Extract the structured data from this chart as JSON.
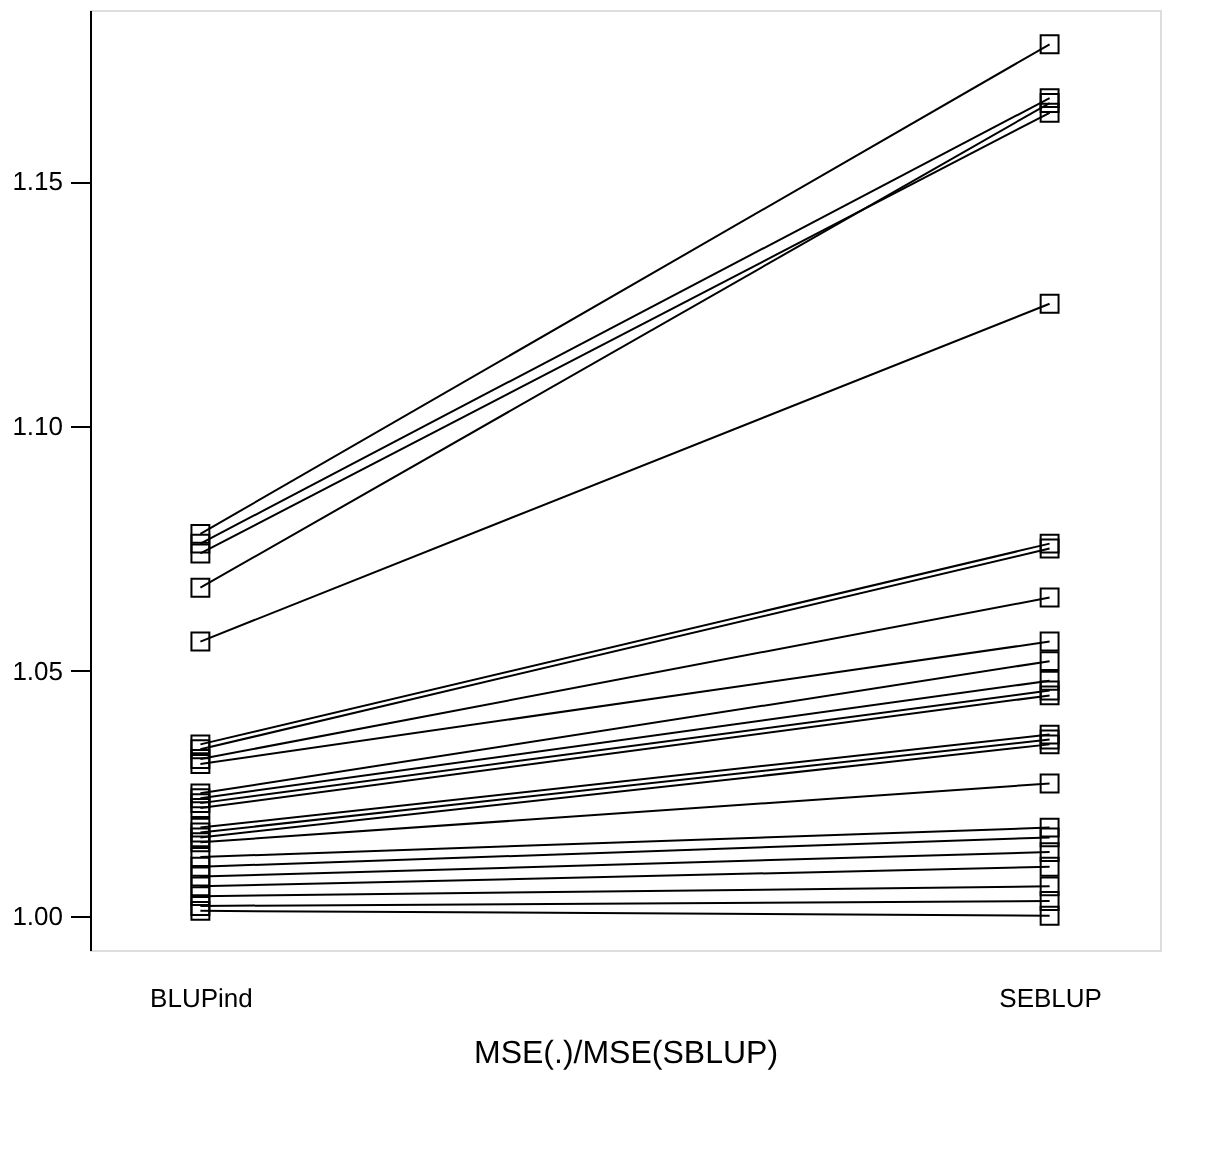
{
  "chart_data": {
    "type": "line",
    "xlabel": "MSE(.)/MSE(SBLUP)",
    "categories": [
      "BLUPind",
      "SEBLUP"
    ],
    "ylim": [
      0.993,
      1.185
    ],
    "yticks": [
      {
        "value": 1.0,
        "label": "1.00"
      },
      {
        "value": 1.05,
        "label": "1.05"
      },
      {
        "value": 1.1,
        "label": "1.10"
      },
      1.15
    ],
    "grid": false,
    "legend": false,
    "marker": "square",
    "line_style": "solid",
    "series": [
      {
        "color": "#000000",
        "values": [
          1.078,
          1.178
        ]
      },
      {
        "color": "#000000",
        "values": [
          1.076,
          1.167
        ]
      },
      {
        "color": "#000000",
        "values": [
          1.074,
          1.164
        ]
      },
      {
        "color": "#000000",
        "values": [
          1.067,
          1.166
        ]
      },
      {
        "color": "#000000",
        "values": [
          1.056,
          1.125
        ]
      },
      {
        "color": "#000000",
        "values": [
          1.035,
          1.076
        ]
      },
      {
        "color": "#000000",
        "values": [
          1.034,
          1.075
        ]
      },
      {
        "color": "#000000",
        "values": [
          1.032,
          1.065
        ]
      },
      {
        "color": "#000000",
        "values": [
          1.031,
          1.056
        ]
      },
      {
        "color": "#000000",
        "values": [
          1.025,
          1.052
        ]
      },
      {
        "color": "#000000",
        "values": [
          1.024,
          1.048
        ]
      },
      {
        "color": "#000000",
        "values": [
          1.023,
          1.046
        ]
      },
      {
        "color": "#000000",
        "values": [
          1.022,
          1.045
        ]
      },
      {
        "color": "#000000",
        "values": [
          1.018,
          1.037
        ]
      },
      {
        "color": "#000000",
        "values": [
          1.017,
          1.036
        ]
      },
      {
        "color": "#000000",
        "values": [
          1.016,
          1.035
        ]
      },
      {
        "color": "#000000",
        "values": [
          1.015,
          1.027
        ]
      },
      {
        "color": "#000000",
        "values": [
          1.012,
          1.018
        ]
      },
      {
        "color": "#000000",
        "values": [
          1.01,
          1.016
        ]
      },
      {
        "color": "#000000",
        "values": [
          1.008,
          1.013
        ]
      },
      {
        "color": "#000000",
        "values": [
          1.006,
          1.01
        ]
      },
      {
        "color": "#000000",
        "values": [
          1.004,
          1.006
        ]
      },
      {
        "color": "#000000",
        "values": [
          1.002,
          1.003
        ]
      },
      {
        "color": "#000000",
        "values": [
          1.001,
          1.0
        ]
      }
    ]
  }
}
